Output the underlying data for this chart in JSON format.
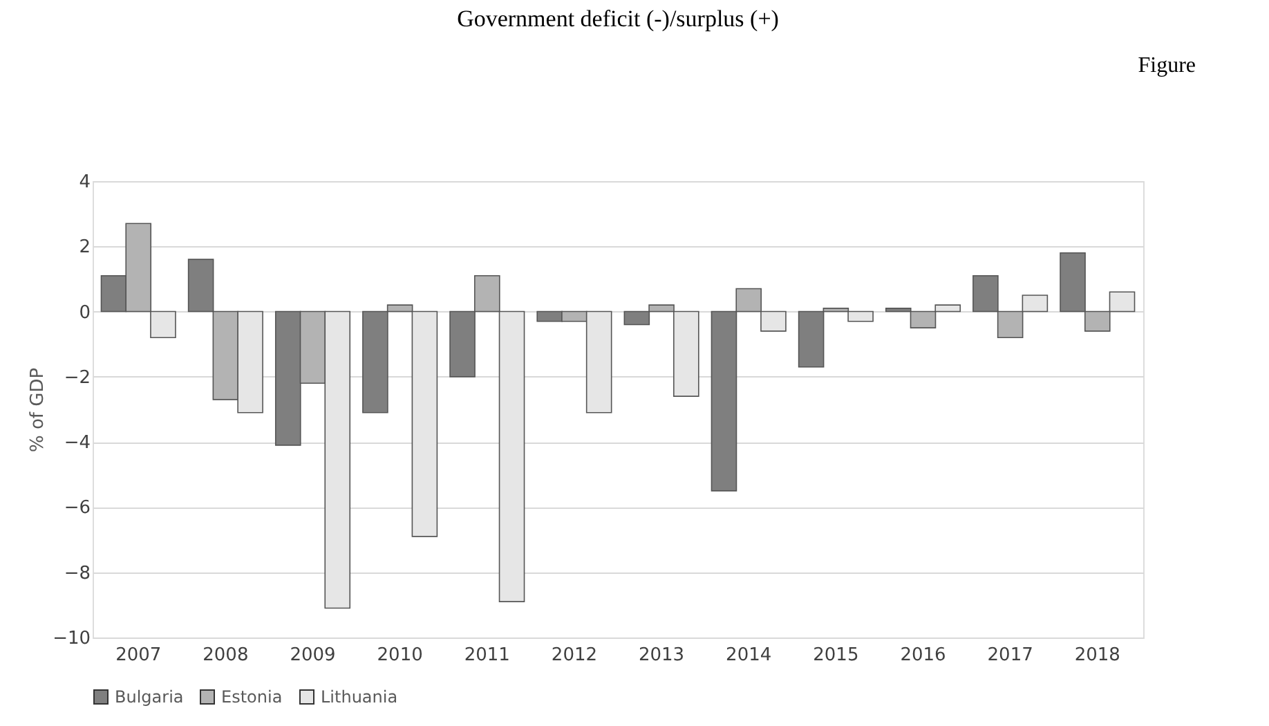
{
  "chart_data": {
    "type": "bar",
    "title": "Government deficit (-)/surplus (+)",
    "ylabel": "% of GDP",
    "annotations": [
      "Figure"
    ],
    "categories": [
      "2007",
      "2008",
      "2009",
      "2010",
      "2011",
      "2012",
      "2013",
      "2014",
      "2015",
      "2016",
      "2017",
      "2018"
    ],
    "series": [
      {
        "name": "Bulgaria",
        "color": "#7f7f7f",
        "values": [
          1.1,
          1.6,
          -4.1,
          -3.1,
          -2.0,
          -0.3,
          -0.4,
          -5.5,
          -1.7,
          0.1,
          1.1,
          1.8
        ]
      },
      {
        "name": "Estonia",
        "color": "#b3b3b3",
        "values": [
          2.7,
          -2.7,
          -2.2,
          0.2,
          1.1,
          -0.3,
          0.2,
          0.7,
          0.1,
          -0.5,
          -0.8,
          -0.6
        ]
      },
      {
        "name": "Lithuania",
        "color": "#e6e6e6",
        "values": [
          -0.8,
          -3.1,
          -9.1,
          -6.9,
          -8.9,
          -3.1,
          -2.6,
          -0.6,
          -0.3,
          0.2,
          0.5,
          0.6
        ]
      }
    ],
    "ylim": [
      -10,
      4
    ],
    "yticks": [
      -10,
      -8,
      -6,
      -4,
      -2,
      0,
      2,
      4
    ],
    "grid": "y",
    "legend": "bottom"
  }
}
